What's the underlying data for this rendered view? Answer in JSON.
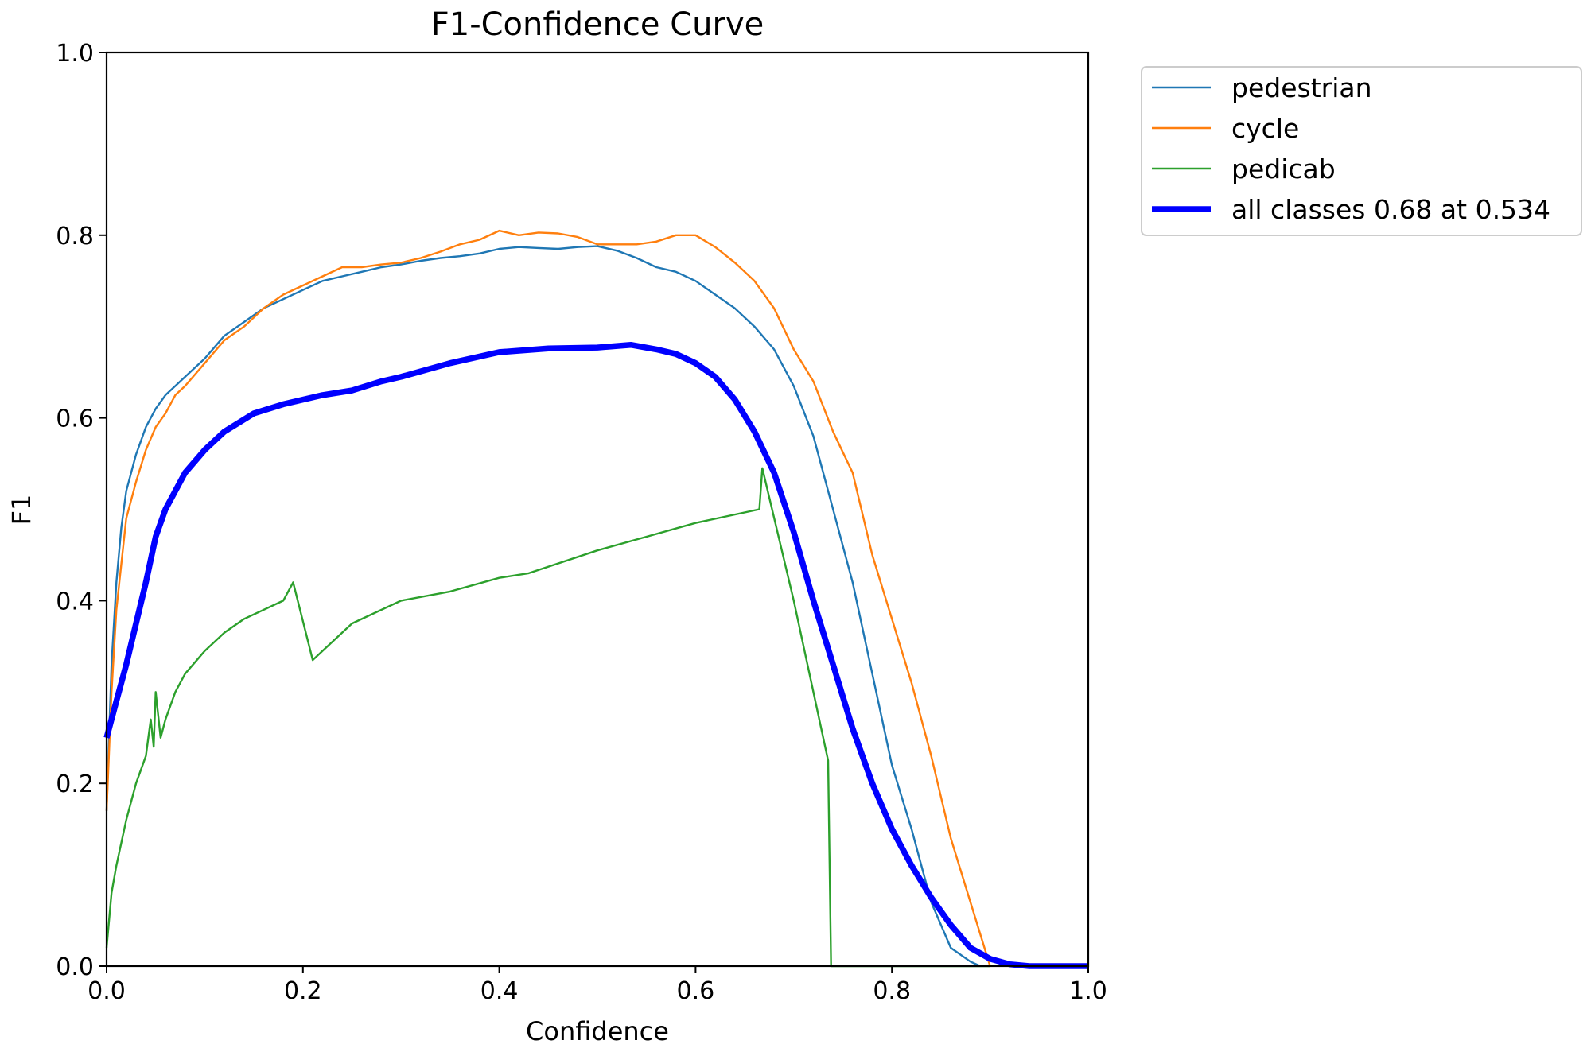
{
  "chart_data": {
    "type": "line",
    "title": "F1-Confidence Curve",
    "xlabel": "Confidence",
    "ylabel": "F1",
    "xlim": [
      0,
      1
    ],
    "ylim": [
      0,
      1
    ],
    "grid": false,
    "legend_position": "outside-top-right",
    "xticks": [
      0.0,
      0.2,
      0.4,
      0.6,
      0.8,
      1.0
    ],
    "yticks": [
      0.0,
      0.2,
      0.4,
      0.6,
      0.8,
      1.0
    ],
    "xtick_labels": [
      "0.0",
      "0.2",
      "0.4",
      "0.6",
      "0.8",
      "1.0"
    ],
    "ytick_labels": [
      "0.0",
      "0.2",
      "0.4",
      "0.6",
      "0.8",
      "1.0"
    ],
    "series": [
      {
        "name": "pedestrian",
        "color": "#1f77b4",
        "line_weight": "thin",
        "x": [
          0.0,
          0.005,
          0.01,
          0.015,
          0.02,
          0.03,
          0.04,
          0.05,
          0.06,
          0.07,
          0.08,
          0.1,
          0.12,
          0.14,
          0.16,
          0.18,
          0.2,
          0.22,
          0.24,
          0.26,
          0.28,
          0.3,
          0.32,
          0.34,
          0.36,
          0.38,
          0.4,
          0.42,
          0.44,
          0.46,
          0.48,
          0.5,
          0.52,
          0.54,
          0.56,
          0.58,
          0.6,
          0.62,
          0.64,
          0.66,
          0.68,
          0.7,
          0.72,
          0.74,
          0.76,
          0.78,
          0.8,
          0.82,
          0.84,
          0.86,
          0.88,
          0.89
        ],
        "values": [
          0.17,
          0.33,
          0.42,
          0.48,
          0.52,
          0.56,
          0.59,
          0.61,
          0.625,
          0.635,
          0.645,
          0.665,
          0.69,
          0.705,
          0.72,
          0.73,
          0.74,
          0.75,
          0.755,
          0.76,
          0.765,
          0.768,
          0.772,
          0.775,
          0.777,
          0.78,
          0.785,
          0.787,
          0.786,
          0.785,
          0.787,
          0.788,
          0.783,
          0.775,
          0.765,
          0.76,
          0.75,
          0.735,
          0.72,
          0.7,
          0.675,
          0.635,
          0.58,
          0.5,
          0.42,
          0.32,
          0.22,
          0.15,
          0.07,
          0.02,
          0.005,
          0.0
        ]
      },
      {
        "name": "cycle",
        "color": "#ff7f0e",
        "line_weight": "thin",
        "x": [
          0.0,
          0.005,
          0.01,
          0.015,
          0.02,
          0.03,
          0.04,
          0.05,
          0.06,
          0.07,
          0.08,
          0.1,
          0.12,
          0.14,
          0.16,
          0.18,
          0.2,
          0.22,
          0.24,
          0.26,
          0.28,
          0.3,
          0.32,
          0.34,
          0.36,
          0.38,
          0.4,
          0.42,
          0.44,
          0.46,
          0.48,
          0.5,
          0.52,
          0.54,
          0.56,
          0.58,
          0.6,
          0.62,
          0.64,
          0.66,
          0.68,
          0.7,
          0.72,
          0.74,
          0.76,
          0.78,
          0.8,
          0.82,
          0.84,
          0.86,
          0.88,
          0.9
        ],
        "values": [
          0.17,
          0.3,
          0.39,
          0.44,
          0.49,
          0.53,
          0.565,
          0.59,
          0.605,
          0.625,
          0.635,
          0.66,
          0.685,
          0.7,
          0.72,
          0.735,
          0.745,
          0.755,
          0.765,
          0.765,
          0.768,
          0.77,
          0.775,
          0.782,
          0.79,
          0.795,
          0.805,
          0.8,
          0.803,
          0.802,
          0.798,
          0.79,
          0.79,
          0.79,
          0.793,
          0.8,
          0.8,
          0.787,
          0.77,
          0.75,
          0.72,
          0.675,
          0.64,
          0.585,
          0.54,
          0.45,
          0.38,
          0.31,
          0.23,
          0.14,
          0.07,
          0.0
        ]
      },
      {
        "name": "pedicab",
        "color": "#2ca02c",
        "line_weight": "thin",
        "x": [
          0.0,
          0.005,
          0.01,
          0.02,
          0.03,
          0.04,
          0.045,
          0.048,
          0.05,
          0.055,
          0.06,
          0.07,
          0.08,
          0.1,
          0.12,
          0.14,
          0.16,
          0.18,
          0.19,
          0.21,
          0.25,
          0.3,
          0.35,
          0.4,
          0.43,
          0.5,
          0.55,
          0.6,
          0.665,
          0.668,
          0.7,
          0.735,
          0.738,
          0.75,
          0.9
        ],
        "values": [
          0.02,
          0.08,
          0.11,
          0.16,
          0.2,
          0.23,
          0.27,
          0.24,
          0.3,
          0.25,
          0.27,
          0.3,
          0.32,
          0.345,
          0.365,
          0.38,
          0.39,
          0.4,
          0.42,
          0.335,
          0.375,
          0.4,
          0.41,
          0.425,
          0.43,
          0.455,
          0.47,
          0.485,
          0.5,
          0.545,
          0.4,
          0.225,
          0.0,
          0.0,
          0.0
        ]
      },
      {
        "name": "all classes 0.68 at 0.534",
        "color": "#0000ff",
        "line_weight": "thick",
        "x": [
          0.0,
          0.01,
          0.02,
          0.03,
          0.04,
          0.05,
          0.06,
          0.08,
          0.1,
          0.12,
          0.15,
          0.18,
          0.2,
          0.22,
          0.25,
          0.28,
          0.3,
          0.35,
          0.4,
          0.45,
          0.5,
          0.534,
          0.56,
          0.58,
          0.6,
          0.62,
          0.64,
          0.66,
          0.68,
          0.7,
          0.72,
          0.74,
          0.76,
          0.78,
          0.8,
          0.82,
          0.84,
          0.86,
          0.88,
          0.9,
          0.92,
          0.94,
          0.96,
          1.0
        ],
        "values": [
          0.25,
          0.29,
          0.33,
          0.375,
          0.42,
          0.47,
          0.5,
          0.54,
          0.565,
          0.585,
          0.605,
          0.615,
          0.62,
          0.625,
          0.63,
          0.64,
          0.645,
          0.66,
          0.672,
          0.676,
          0.677,
          0.68,
          0.675,
          0.67,
          0.66,
          0.645,
          0.62,
          0.585,
          0.54,
          0.475,
          0.4,
          0.33,
          0.26,
          0.2,
          0.15,
          0.11,
          0.075,
          0.045,
          0.02,
          0.008,
          0.002,
          0.0,
          0.0,
          0.0
        ]
      }
    ]
  }
}
